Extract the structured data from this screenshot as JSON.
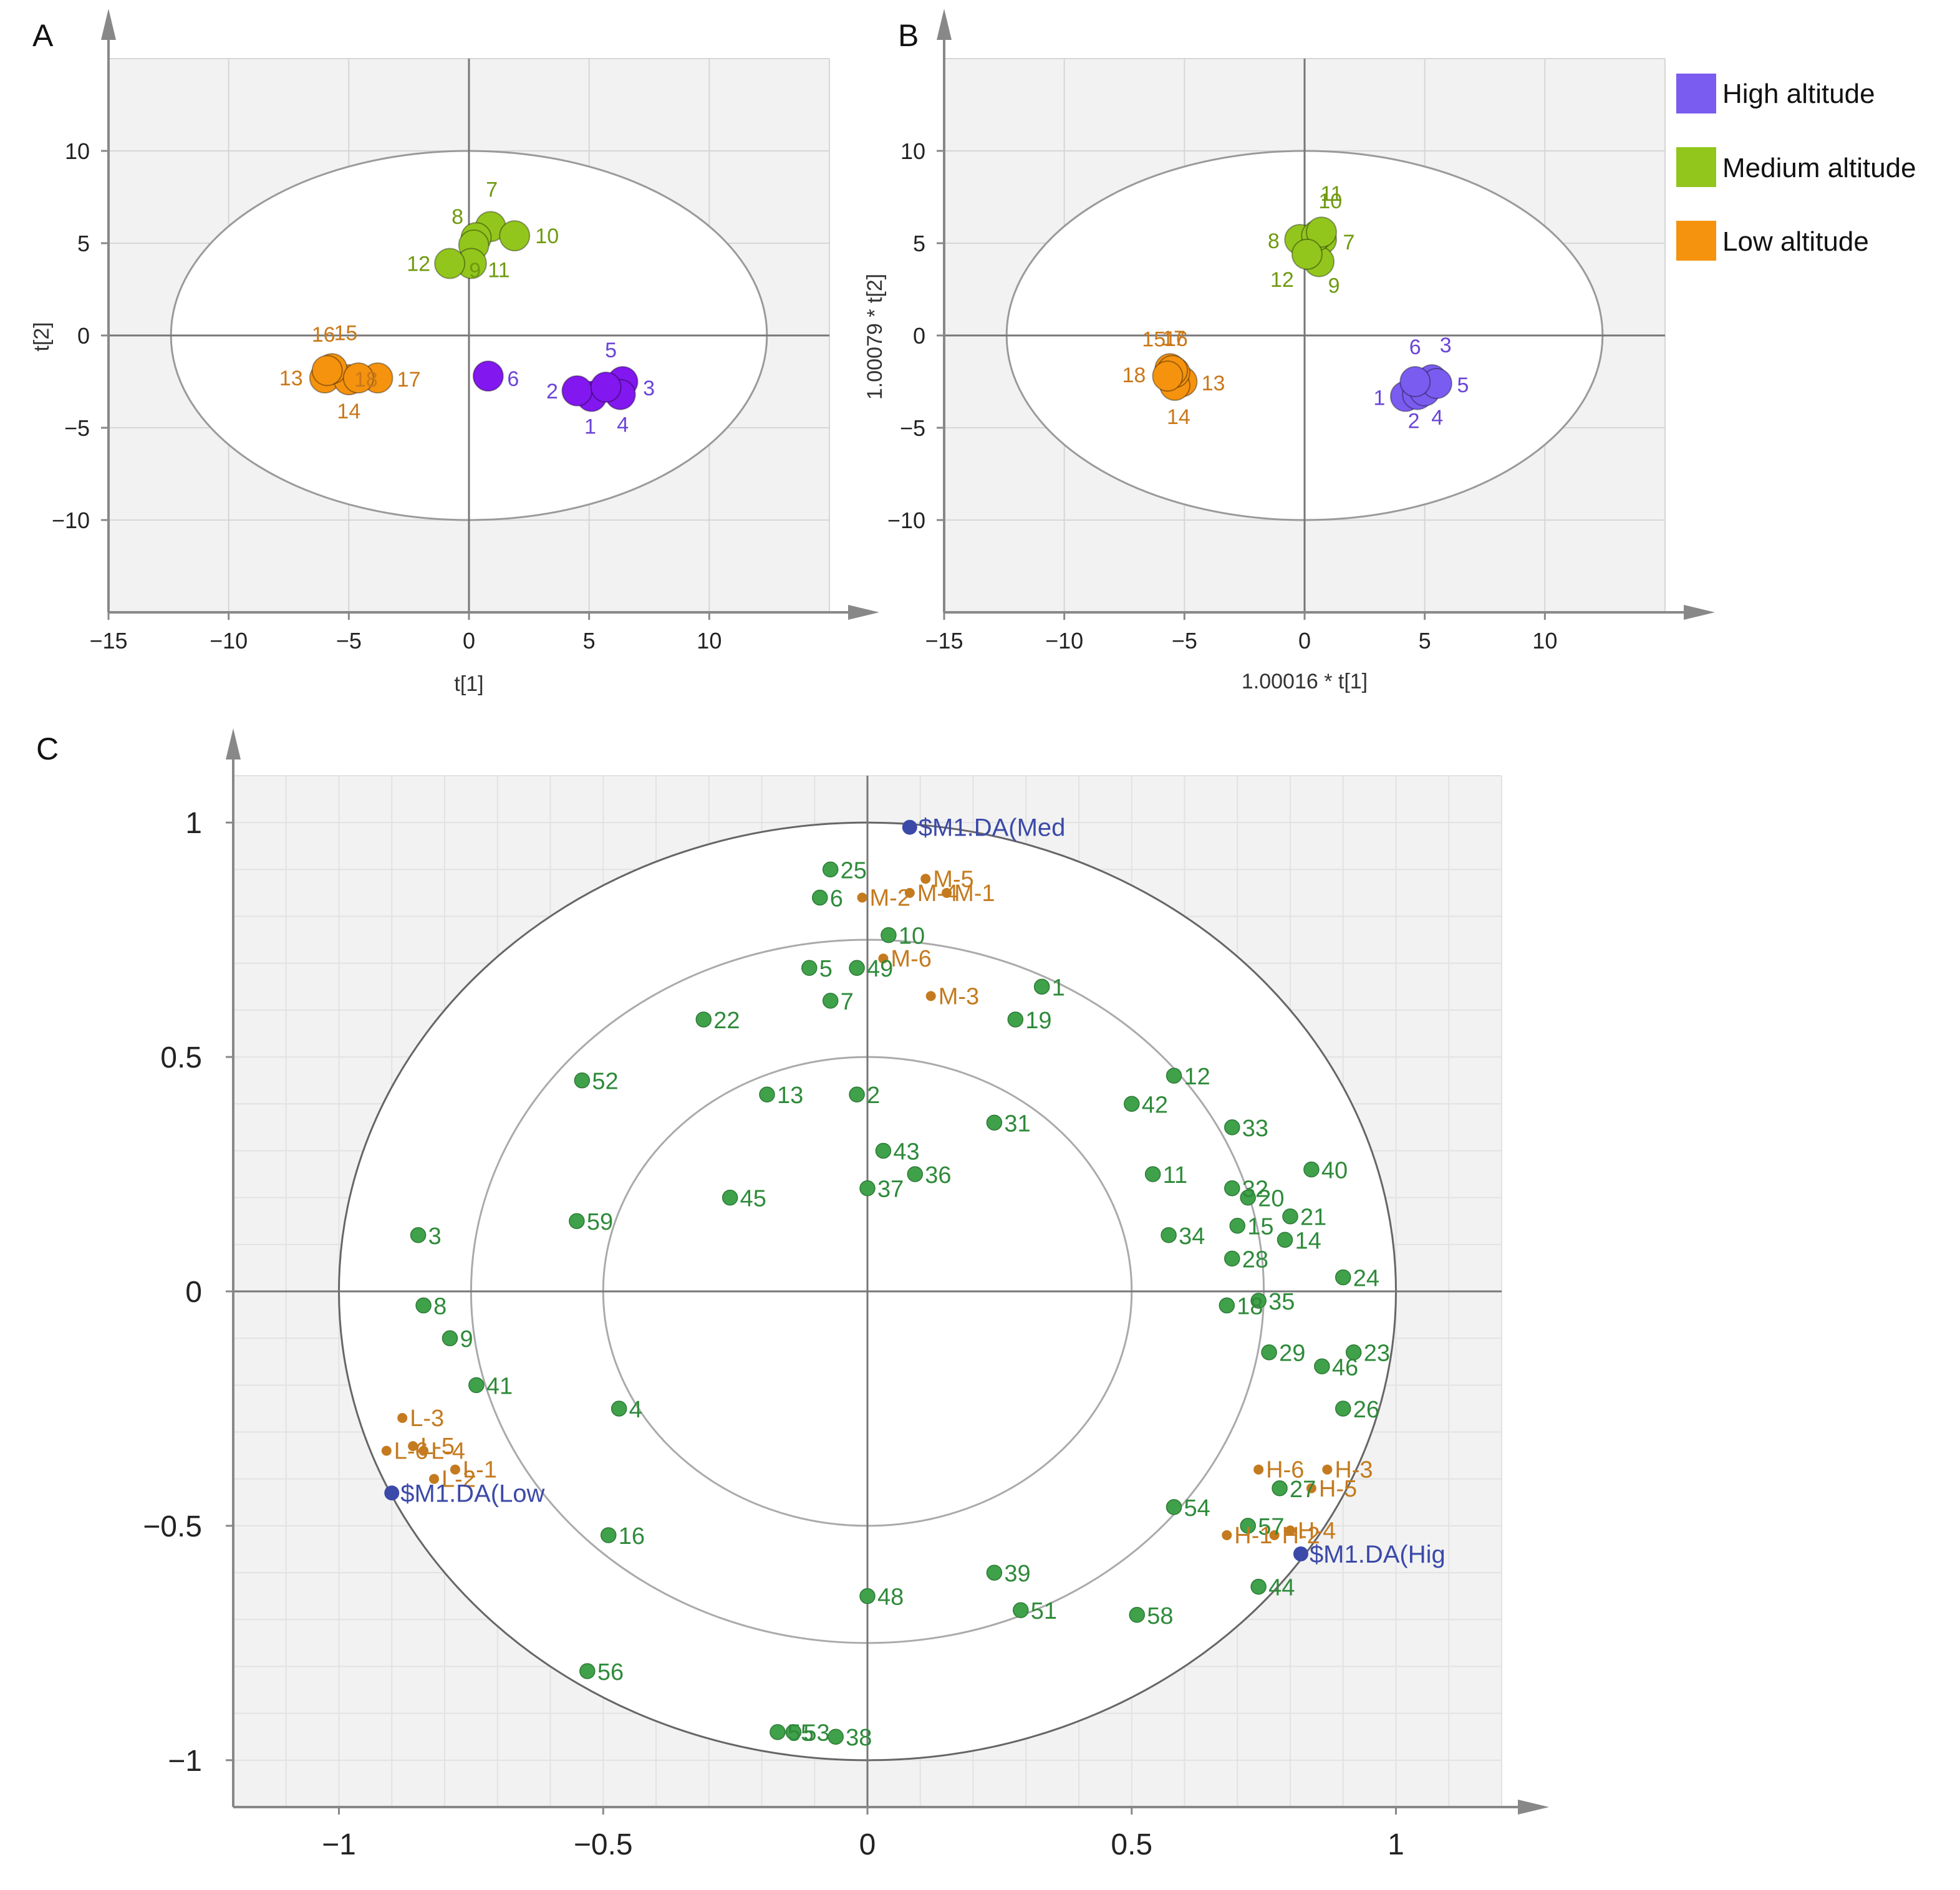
{
  "panel_letters": {
    "a": "A",
    "b": "B",
    "c": "C"
  },
  "legend": {
    "entries": [
      {
        "label": "High altitude",
        "color": "#7a5cf0"
      },
      {
        "label": "Medium altitude",
        "color": "#92c61d"
      },
      {
        "label": "Low altitude",
        "color": "#f5930f"
      }
    ]
  },
  "colors": {
    "high": "#7a5cf0",
    "high_panel_a": "#8217ef",
    "high_label": "#6b45d6",
    "medium": "#92c61d",
    "medium_label": "#6f9a10",
    "low": "#f5930f",
    "low_label": "#c9781a",
    "variable": "#3fa14a",
    "variable_label": "#2e8a3a",
    "sample_load": "#c47a1e",
    "sample_load_label": "#c47a1e",
    "response": "#3b4aa8",
    "response_label": "#3b4aa8",
    "plot_bg": "#f2f2f2",
    "grid": "#d6d6d6",
    "axis": "#888888"
  },
  "chart_data": [
    {
      "id": "A",
      "type": "scatter",
      "xlabel": "t[1]",
      "ylabel": "t[2]",
      "xlim": [
        -15,
        15
      ],
      "ylim": [
        -15,
        15
      ],
      "xticks": [
        -15,
        -10,
        -5,
        0,
        5,
        10
      ],
      "yticks": [
        -10,
        -5,
        0,
        5,
        10
      ],
      "ellipse": {
        "rx": 12.4,
        "ry": 10
      },
      "grid": true,
      "points": [
        {
          "label": "1",
          "group": "high",
          "x": 5.1,
          "y": -3.3
        },
        {
          "label": "2",
          "group": "high",
          "x": 4.5,
          "y": -3.0
        },
        {
          "label": "3",
          "group": "high",
          "x": 6.4,
          "y": -2.5
        },
        {
          "label": "4",
          "group": "high",
          "x": 6.3,
          "y": -3.2
        },
        {
          "label": "5",
          "group": "high",
          "x": 5.7,
          "y": -2.8
        },
        {
          "label": "6",
          "group": "high",
          "x": 0.8,
          "y": -2.2
        },
        {
          "label": "7",
          "group": "medium",
          "x": 0.9,
          "y": 5.9
        },
        {
          "label": "8",
          "group": "medium",
          "x": 0.3,
          "y": 5.3
        },
        {
          "label": "9",
          "group": "medium",
          "x": 0.2,
          "y": 4.9
        },
        {
          "label": "10",
          "group": "medium",
          "x": 1.9,
          "y": 5.4
        },
        {
          "label": "11",
          "group": "medium",
          "x": 0.1,
          "y": 3.9
        },
        {
          "label": "12",
          "group": "medium",
          "x": -0.8,
          "y": 3.9
        },
        {
          "label": "13",
          "group": "low",
          "x": -6.0,
          "y": -2.3
        },
        {
          "label": "14",
          "group": "low",
          "x": -5.0,
          "y": -2.4
        },
        {
          "label": "15",
          "group": "low",
          "x": -5.7,
          "y": -1.8
        },
        {
          "label": "16",
          "group": "low",
          "x": -5.9,
          "y": -1.9
        },
        {
          "label": "17",
          "group": "low",
          "x": -3.8,
          "y": -2.3
        },
        {
          "label": "18",
          "group": "low",
          "x": -4.6,
          "y": -2.3
        }
      ]
    },
    {
      "id": "B",
      "type": "scatter",
      "xlabel": "1.00016 * t[1]",
      "ylabel": "1.00079 * t[2]",
      "xlim": [
        -15,
        15
      ],
      "ylim": [
        -15,
        15
      ],
      "xticks": [
        -15,
        -10,
        -5,
        0,
        5,
        10
      ],
      "yticks": [
        -10,
        -5,
        0,
        5,
        10
      ],
      "ellipse": {
        "rx": 12.4,
        "ry": 10
      },
      "grid": true,
      "points": [
        {
          "label": "1",
          "group": "high",
          "x": 4.2,
          "y": -3.3
        },
        {
          "label": "2",
          "group": "high",
          "x": 4.7,
          "y": -3.2
        },
        {
          "label": "3",
          "group": "high",
          "x": 5.3,
          "y": -2.4
        },
        {
          "label": "4",
          "group": "high",
          "x": 5.0,
          "y": -3.0
        },
        {
          "label": "5",
          "group": "high",
          "x": 5.5,
          "y": -2.6
        },
        {
          "label": "6",
          "group": "high",
          "x": 4.6,
          "y": -2.5
        },
        {
          "label": "7",
          "group": "medium",
          "x": 0.7,
          "y": 5.2
        },
        {
          "label": "8",
          "group": "medium",
          "x": -0.2,
          "y": 5.2
        },
        {
          "label": "9",
          "group": "medium",
          "x": 0.6,
          "y": 4.0
        },
        {
          "label": "10",
          "group": "medium",
          "x": 0.5,
          "y": 5.4
        },
        {
          "label": "11",
          "group": "medium",
          "x": 0.7,
          "y": 5.6
        },
        {
          "label": "12",
          "group": "medium",
          "x": 0.1,
          "y": 4.4
        },
        {
          "label": "13",
          "group": "low",
          "x": -5.1,
          "y": -2.5
        },
        {
          "label": "14",
          "group": "low",
          "x": -5.4,
          "y": -2.7
        },
        {
          "label": "15",
          "group": "low",
          "x": -5.6,
          "y": -1.8
        },
        {
          "label": "16",
          "group": "low",
          "x": -5.4,
          "y": -2.0
        },
        {
          "label": "17",
          "group": "low",
          "x": -5.5,
          "y": -1.9
        },
        {
          "label": "18",
          "group": "low",
          "x": -5.7,
          "y": -2.2
        }
      ]
    },
    {
      "id": "C",
      "type": "scatter",
      "xlabel": "",
      "ylabel": "",
      "xlim": [
        -1.2,
        1.2
      ],
      "ylim": [
        -1.1,
        1.1
      ],
      "xticks": [
        -1,
        -0.5,
        0,
        0.5,
        1
      ],
      "xtick_labels": [
        "−1",
        "−0.5",
        "0",
        "0.5",
        "1"
      ],
      "yticks": [
        -1,
        -0.5,
        0,
        0.5,
        1
      ],
      "ytick_labels": [
        "−1",
        "−0.5",
        "0",
        "0.5",
        "1"
      ],
      "circles": [
        0.5,
        0.75,
        1
      ],
      "grid": true,
      "variables": [
        {
          "label": "1",
          "x": 0.33,
          "y": 0.65
        },
        {
          "label": "2",
          "x": -0.02,
          "y": 0.42
        },
        {
          "label": "3",
          "x": -0.85,
          "y": 0.12
        },
        {
          "label": "4",
          "x": -0.47,
          "y": -0.25
        },
        {
          "label": "5",
          "x": -0.11,
          "y": 0.69
        },
        {
          "label": "6",
          "x": -0.09,
          "y": 0.84
        },
        {
          "label": "7",
          "x": -0.07,
          "y": 0.62
        },
        {
          "label": "8",
          "x": -0.84,
          "y": -0.03
        },
        {
          "label": "9",
          "x": -0.79,
          "y": -0.1
        },
        {
          "label": "10",
          "x": 0.04,
          "y": 0.76
        },
        {
          "label": "11",
          "x": 0.54,
          "y": 0.25
        },
        {
          "label": "12",
          "x": 0.58,
          "y": 0.46
        },
        {
          "label": "13",
          "x": -0.19,
          "y": 0.42
        },
        {
          "label": "14",
          "x": 0.79,
          "y": 0.11
        },
        {
          "label": "15",
          "x": 0.7,
          "y": 0.14
        },
        {
          "label": "16",
          "x": -0.49,
          "y": -0.52
        },
        {
          "label": "18",
          "x": 0.68,
          "y": -0.03
        },
        {
          "label": "19",
          "x": 0.28,
          "y": 0.58
        },
        {
          "label": "20",
          "x": 0.72,
          "y": 0.2
        },
        {
          "label": "21",
          "x": 0.8,
          "y": 0.16
        },
        {
          "label": "22",
          "x": -0.31,
          "y": 0.58
        },
        {
          "label": "23",
          "x": 0.92,
          "y": -0.13
        },
        {
          "label": "24",
          "x": 0.9,
          "y": 0.03
        },
        {
          "label": "25",
          "x": -0.07,
          "y": 0.9
        },
        {
          "label": "26",
          "x": 0.9,
          "y": -0.25
        },
        {
          "label": "27",
          "x": 0.78,
          "y": -0.42
        },
        {
          "label": "28",
          "x": 0.69,
          "y": 0.07
        },
        {
          "label": "29",
          "x": 0.76,
          "y": -0.13
        },
        {
          "label": "31",
          "x": 0.24,
          "y": 0.36
        },
        {
          "label": "32",
          "x": 0.69,
          "y": 0.22
        },
        {
          "label": "33",
          "x": 0.69,
          "y": 0.35
        },
        {
          "label": "34",
          "x": 0.57,
          "y": 0.12
        },
        {
          "label": "35",
          "x": 0.74,
          "y": -0.02
        },
        {
          "label": "36",
          "x": 0.09,
          "y": 0.25
        },
        {
          "label": "37",
          "x": 0.0,
          "y": 0.22
        },
        {
          "label": "38",
          "x": -0.06,
          "y": -0.95
        },
        {
          "label": "39",
          "x": 0.24,
          "y": -0.6
        },
        {
          "label": "40",
          "x": 0.84,
          "y": 0.26
        },
        {
          "label": "41",
          "x": -0.74,
          "y": -0.2
        },
        {
          "label": "42",
          "x": 0.5,
          "y": 0.4
        },
        {
          "label": "43",
          "x": 0.03,
          "y": 0.3
        },
        {
          "label": "44",
          "x": 0.74,
          "y": -0.63
        },
        {
          "label": "45",
          "x": -0.26,
          "y": 0.2
        },
        {
          "label": "46",
          "x": 0.86,
          "y": -0.16
        },
        {
          "label": "48",
          "x": 0.0,
          "y": -0.65
        },
        {
          "label": "49",
          "x": -0.02,
          "y": 0.69
        },
        {
          "label": "51",
          "x": 0.29,
          "y": -0.68
        },
        {
          "label": "52",
          "x": -0.54,
          "y": 0.45
        },
        {
          "label": "53",
          "x": -0.14,
          "y": -0.94
        },
        {
          "label": "54",
          "x": 0.58,
          "y": -0.46
        },
        {
          "label": "55",
          "x": -0.17,
          "y": -0.94
        },
        {
          "label": "56",
          "x": -0.53,
          "y": -0.81
        },
        {
          "label": "57",
          "x": 0.72,
          "y": -0.5
        },
        {
          "label": "58",
          "x": 0.51,
          "y": -0.69
        },
        {
          "label": "59",
          "x": -0.55,
          "y": 0.15
        }
      ],
      "samples": [
        {
          "label": "M-5",
          "x": 0.11,
          "y": 0.88
        },
        {
          "label": "M-4",
          "x": 0.08,
          "y": 0.85
        },
        {
          "label": "M-1",
          "x": 0.15,
          "y": 0.85
        },
        {
          "label": "M-2",
          "x": -0.01,
          "y": 0.84
        },
        {
          "label": "M-6",
          "x": 0.03,
          "y": 0.71
        },
        {
          "label": "M-3",
          "x": 0.12,
          "y": 0.63
        },
        {
          "label": "L-3",
          "x": -0.88,
          "y": -0.27
        },
        {
          "label": "L-5",
          "x": -0.86,
          "y": -0.33
        },
        {
          "label": "L-6",
          "x": -0.91,
          "y": -0.34
        },
        {
          "label": "L-4",
          "x": -0.84,
          "y": -0.34
        },
        {
          "label": "L-2",
          "x": -0.82,
          "y": -0.4
        },
        {
          "label": "L-1",
          "x": -0.78,
          "y": -0.38
        },
        {
          "label": "H-6",
          "x": 0.74,
          "y": -0.38
        },
        {
          "label": "H-3",
          "x": 0.87,
          "y": -0.38
        },
        {
          "label": "H-5",
          "x": 0.84,
          "y": -0.42
        },
        {
          "label": "H-4",
          "x": 0.8,
          "y": -0.51
        },
        {
          "label": "H-2",
          "x": 0.77,
          "y": -0.52
        },
        {
          "label": "H-1",
          "x": 0.68,
          "y": -0.52
        }
      ],
      "responses": [
        {
          "label": "$M1.DA(Med",
          "x": 0.08,
          "y": 0.99
        },
        {
          "label": "$M1.DA(Low",
          "x": -0.9,
          "y": -0.43
        },
        {
          "label": "$M1.DA(Hig",
          "x": 0.82,
          "y": -0.56
        }
      ]
    }
  ]
}
